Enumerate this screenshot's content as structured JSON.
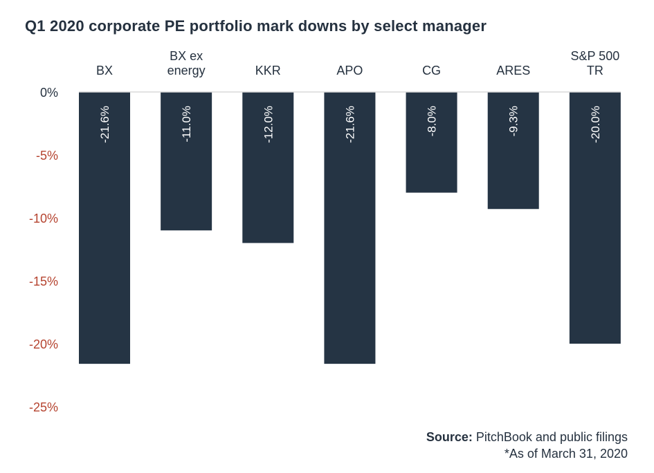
{
  "chart_data": {
    "type": "bar",
    "title": "Q1 2020 corporate PE portfolio mark downs by select manager",
    "categories": [
      [
        "BX"
      ],
      [
        "BX ex",
        "energy"
      ],
      [
        "KKR"
      ],
      [
        "APO"
      ],
      [
        "CG"
      ],
      [
        "ARES"
      ],
      [
        "S&P 500",
        "TR"
      ]
    ],
    "values": [
      -21.6,
      -11.0,
      -12.0,
      -21.6,
      -8.0,
      -9.3,
      -20.0
    ],
    "value_labels": [
      "-21.6%",
      "-11.0%",
      "-12.0%",
      "-21.6%",
      "-8.0%",
      "-9.3%",
      "-20.0%"
    ],
    "xlabel": "",
    "ylabel": "",
    "ylim": [
      -25,
      0
    ],
    "yticks": [
      0,
      -5,
      -10,
      -15,
      -20,
      -25
    ],
    "ytick_labels": [
      "0%",
      "-5%",
      "-10%",
      "-15%",
      "-20%",
      "-25%"
    ],
    "category_axis_position": "top",
    "grid": false,
    "legend": null,
    "colors": {
      "bar": "#253444",
      "bar_label": "#ffffff",
      "negative_tick": "#b5432f",
      "zero_tick": "#25313f",
      "axis_line": "#d9d9d9",
      "category_text": "#25313f"
    }
  },
  "footer": {
    "source_label": "Source:",
    "source_text": " PitchBook and public filings",
    "note": "*As of March 31, 2020"
  }
}
